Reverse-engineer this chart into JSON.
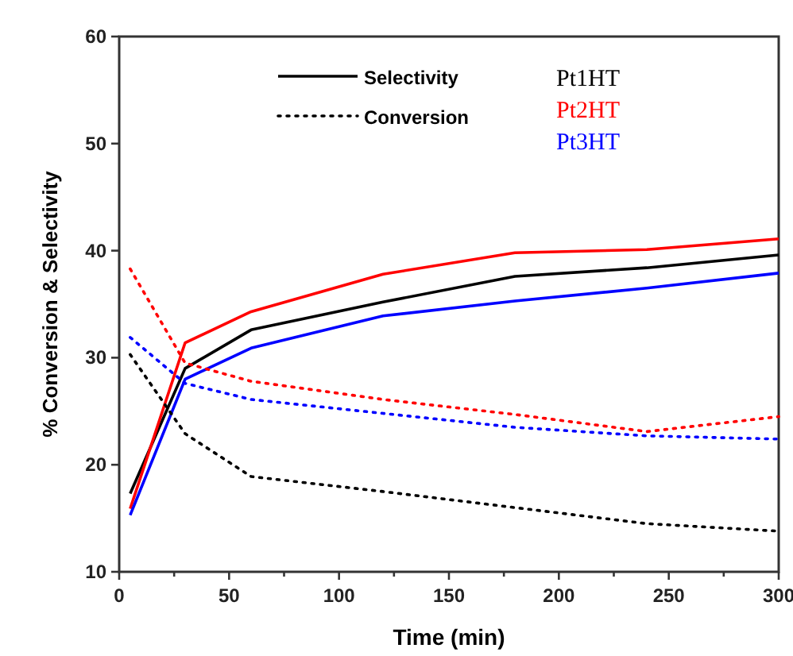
{
  "chart_data": {
    "type": "line",
    "xlabel": "Time (min)",
    "ylabel": "% Conversion & Selectivity",
    "x": [
      5,
      30,
      60,
      120,
      180,
      240,
      300
    ],
    "series": [
      {
        "name": "Pt1HT",
        "color": "#000000",
        "line_style": "solid",
        "values": [
          17.3,
          29.0,
          32.6,
          35.2,
          37.6,
          38.4,
          39.6
        ]
      },
      {
        "name": "Pt2HT",
        "color": "#ff0000",
        "line_style": "solid",
        "values": [
          15.9,
          31.4,
          34.3,
          37.8,
          39.8,
          40.1,
          41.1
        ]
      },
      {
        "name": "Pt3HT",
        "color": "#0000ff",
        "line_style": "solid",
        "values": [
          15.3,
          28.0,
          30.9,
          33.9,
          35.3,
          36.5,
          37.9
        ]
      },
      {
        "color": "#000000",
        "line_style": "dotted",
        "values": [
          30.3,
          22.9,
          18.9,
          17.5,
          16.0,
          14.5,
          13.8
        ]
      },
      {
        "color": "#ff0000",
        "line_style": "dotted",
        "values": [
          38.3,
          29.5,
          27.8,
          26.1,
          24.7,
          23.1,
          24.5
        ]
      },
      {
        "color": "#0000ff",
        "line_style": "dotted",
        "values": [
          31.9,
          27.6,
          26.1,
          24.8,
          23.5,
          22.7,
          22.4
        ]
      }
    ],
    "annotations": [
      "Selectivity",
      "Conversion"
    ],
    "xlim": [
      0,
      300
    ],
    "xticks": [
      0,
      {
        "value": 25,
        "label": null
      },
      50,
      {
        "value": 75,
        "label": null
      },
      100,
      {
        "value": 125,
        "label": null
      },
      150,
      {
        "value": 175,
        "label": null
      },
      200,
      {
        "value": 225,
        "label": null
      },
      250,
      {
        "value": 275,
        "label": null
      },
      300
    ],
    "ylim": [
      10,
      60
    ],
    "yticks": [
      10,
      20,
      30,
      40,
      50,
      60
    ],
    "legend": "top",
    "marker": "none",
    "grid": false
  }
}
